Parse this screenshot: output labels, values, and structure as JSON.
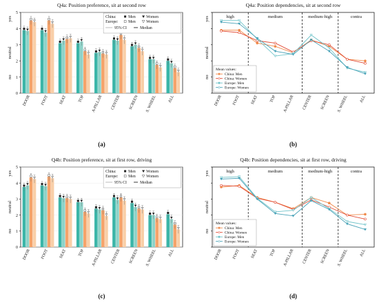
{
  "chart_data": [
    {
      "type": "bar",
      "panel_label": "(a)",
      "title": "Q4a: Position preference, sit at second row",
      "ylabel_ticks": [
        "no",
        "neutral",
        "yes"
      ],
      "yticks": [
        0,
        1,
        2,
        3,
        4,
        5
      ],
      "ylim": [
        0,
        5
      ],
      "categories": [
        "DOOR",
        "FOOT",
        "SEAT",
        "TOP",
        "A-PILLAR",
        "CENTER",
        "SCREEN",
        "S. WHEEL",
        "ALL"
      ],
      "series": [
        {
          "name": "China: Men",
          "values": [
            3.9,
            3.9,
            3.1,
            3.1,
            2.5,
            3.3,
            2.9,
            2.1,
            2.0
          ]
        },
        {
          "name": "China: Women",
          "values": [
            3.85,
            3.75,
            3.25,
            3.2,
            2.55,
            3.25,
            3.0,
            2.1,
            1.85
          ]
        },
        {
          "name": "Europe: Men",
          "values": [
            4.5,
            4.5,
            3.35,
            2.6,
            2.45,
            3.6,
            2.8,
            1.75,
            1.55
          ]
        },
        {
          "name": "Europe: Women",
          "values": [
            4.4,
            4.3,
            3.4,
            2.4,
            2.4,
            3.3,
            2.6,
            1.6,
            1.3
          ]
        }
      ],
      "legend": {
        "groups": [
          "China:",
          "Europe:"
        ],
        "columns": [
          "Men",
          "Women"
        ],
        "ci_label": "95% CI",
        "median_label": "Median"
      }
    },
    {
      "type": "line",
      "panel_label": "(b)",
      "title": "Q4a: Position dependencies, sit at second row",
      "ylabel_ticks": [
        "no",
        "neutral",
        "yes"
      ],
      "ylim": [
        0,
        5
      ],
      "categories": [
        "DOOR",
        "FOOT",
        "SEAT",
        "TOP",
        "A-PILLAR",
        "CENTER",
        "SCREEN",
        "S. WHEEL",
        "ALL"
      ],
      "regions": [
        "high",
        "medium",
        "medium-high",
        "contra"
      ],
      "legend_title": "Mean values:",
      "series": [
        {
          "name": "China: Men",
          "color": "#f08a4b",
          "values": [
            3.9,
            3.9,
            3.1,
            2.9,
            2.5,
            3.3,
            2.9,
            2.1,
            2.0
          ]
        },
        {
          "name": "China: Women",
          "color": "#e24a33",
          "values": [
            3.85,
            3.75,
            3.25,
            3.1,
            2.55,
            3.25,
            3.0,
            2.1,
            1.85
          ]
        },
        {
          "name": "Europe: Men",
          "color": "#6fc3c9",
          "values": [
            4.5,
            4.5,
            3.35,
            2.3,
            2.45,
            3.6,
            2.8,
            1.55,
            1.3
          ]
        },
        {
          "name": "Europe: Women",
          "color": "#4aa3b8",
          "values": [
            4.4,
            4.3,
            3.4,
            2.6,
            2.4,
            3.3,
            2.6,
            1.6,
            1.2
          ]
        }
      ]
    },
    {
      "type": "bar",
      "panel_label": "(c)",
      "title": "Q4b: Position preference, sit at first row, driving",
      "ylabel_ticks": [
        "no",
        "neutral",
        "yes"
      ],
      "yticks": [
        0,
        1,
        2,
        3,
        4,
        5
      ],
      "ylim": [
        0,
        5
      ],
      "categories": [
        "DOOR",
        "FOOT",
        "SEAT",
        "TOP",
        "A-PILLAR",
        "CENTER",
        "SCREEN",
        "S. WHEEL",
        "ALL"
      ],
      "series": [
        {
          "name": "China: Men",
          "values": [
            3.75,
            3.85,
            3.1,
            2.8,
            2.4,
            3.1,
            2.75,
            2.0,
            2.05
          ]
        },
        {
          "name": "China: Women",
          "values": [
            3.85,
            3.8,
            3.05,
            2.8,
            2.35,
            2.95,
            2.5,
            2.0,
            1.75
          ]
        },
        {
          "name": "Europe: Men",
          "values": [
            4.35,
            4.4,
            3.05,
            2.2,
            2.3,
            3.1,
            2.4,
            1.8,
            1.4
          ]
        },
        {
          "name": "Europe: Women",
          "values": [
            4.25,
            4.3,
            3.0,
            2.1,
            1.95,
            2.9,
            2.35,
            1.75,
            1.1
          ]
        }
      ],
      "legend": {
        "groups": [
          "China:",
          "Europe:"
        ],
        "columns": [
          "Men",
          "Women"
        ],
        "ci_label": "95% CI",
        "median_label": "Median"
      }
    },
    {
      "type": "line",
      "panel_label": "(d)",
      "title": "Q4b: Position dependencies, sit at first row, driving",
      "ylabel_ticks": [
        "no",
        "neutral",
        "yes"
      ],
      "ylim": [
        0,
        5
      ],
      "categories": [
        "DOOR",
        "FOOT",
        "SEAT",
        "TOP",
        "A-PILLAR",
        "CENTER",
        "SCREEN",
        "S. WHEEL",
        "ALL"
      ],
      "regions": [
        "high",
        "medium",
        "medium-high",
        "contra"
      ],
      "legend_title": "Mean values:",
      "series": [
        {
          "name": "China: Men",
          "color": "#f08a4b",
          "values": [
            3.75,
            3.85,
            3.1,
            2.8,
            2.4,
            3.1,
            2.75,
            2.0,
            2.05
          ]
        },
        {
          "name": "China: Women",
          "color": "#e24a33",
          "values": [
            3.85,
            3.8,
            3.05,
            2.8,
            2.35,
            2.95,
            2.5,
            2.0,
            1.75
          ]
        },
        {
          "name": "Europe: Men",
          "color": "#6fc3c9",
          "values": [
            4.35,
            4.4,
            3.05,
            2.2,
            2.3,
            3.1,
            2.4,
            1.6,
            1.4
          ]
        },
        {
          "name": "Europe: Women",
          "color": "#4aa3b8",
          "values": [
            4.25,
            4.3,
            3.0,
            2.1,
            1.95,
            2.9,
            2.35,
            1.45,
            1.1
          ]
        }
      ]
    }
  ],
  "colors": {
    "china_men": "#3bb5a8",
    "china_women": "#8fd3c9",
    "europe_men": "#f5a36a",
    "europe_women": "#f9cfa8"
  }
}
